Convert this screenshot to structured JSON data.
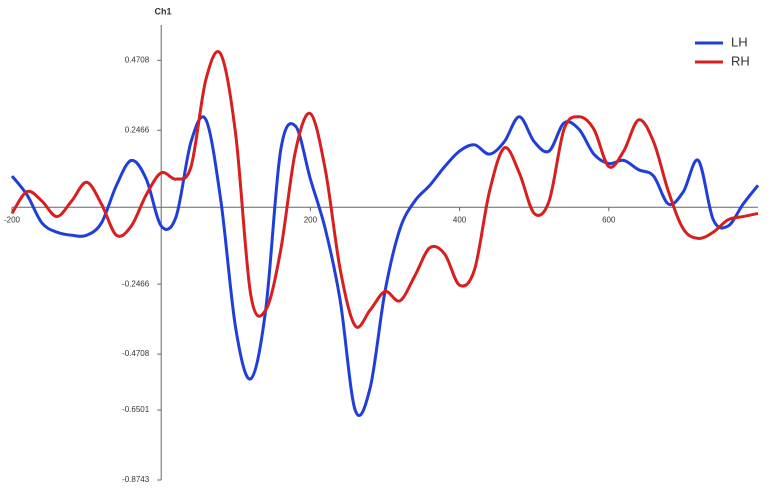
{
  "chart_data": {
    "type": "line",
    "title": "Ch1",
    "x": [
      -200,
      -180,
      -160,
      -140,
      -120,
      -100,
      -80,
      -60,
      -40,
      -20,
      0,
      20,
      40,
      60,
      80,
      100,
      120,
      140,
      160,
      180,
      200,
      220,
      240,
      260,
      280,
      300,
      320,
      340,
      360,
      380,
      400,
      420,
      440,
      460,
      480,
      500,
      520,
      540,
      560,
      580,
      600,
      620,
      640,
      660,
      680,
      700,
      720,
      740,
      760,
      780,
      800
    ],
    "series": [
      {
        "name": "LH",
        "color": "#1f3fd8",
        "values": [
          0.1,
          0.04,
          -0.05,
          -0.08,
          -0.09,
          -0.09,
          -0.05,
          0.07,
          0.15,
          0.09,
          -0.06,
          -0.03,
          0.21,
          0.28,
          0.02,
          -0.39,
          -0.55,
          -0.33,
          0.18,
          0.26,
          0.09,
          -0.07,
          -0.3,
          -0.65,
          -0.58,
          -0.27,
          -0.07,
          0.02,
          0.07,
          0.13,
          0.18,
          0.2,
          0.17,
          0.21,
          0.29,
          0.21,
          0.18,
          0.27,
          0.25,
          0.17,
          0.14,
          0.15,
          0.12,
          0.1,
          0.01,
          0.05,
          0.15,
          -0.04,
          -0.06,
          0.01,
          0.07
        ]
      },
      {
        "name": "RH",
        "color": "#d81f1f",
        "values": [
          -0.02,
          0.05,
          0.02,
          -0.03,
          0.02,
          0.08,
          0.01,
          -0.09,
          -0.06,
          0.04,
          0.11,
          0.09,
          0.13,
          0.41,
          0.49,
          0.23,
          -0.28,
          -0.33,
          -0.14,
          0.18,
          0.3,
          0.12,
          -0.2,
          -0.38,
          -0.33,
          -0.27,
          -0.3,
          -0.22,
          -0.13,
          -0.15,
          -0.25,
          -0.2,
          0.05,
          0.19,
          0.11,
          -0.02,
          0.02,
          0.25,
          0.29,
          0.25,
          0.13,
          0.18,
          0.28,
          0.21,
          0.05,
          -0.07,
          -0.1,
          -0.08,
          -0.04,
          -0.03,
          -0.02
        ]
      }
    ],
    "xlim": [
      -200,
      800
    ],
    "xticks": [
      -200,
      200,
      400,
      600
    ],
    "ylim": [
      -0.8743,
      0.6
    ],
    "yticks": [
      0.4708,
      0.2466,
      -0.2466,
      -0.4708,
      -0.6501,
      -0.8743
    ],
    "legend": "top-right"
  }
}
